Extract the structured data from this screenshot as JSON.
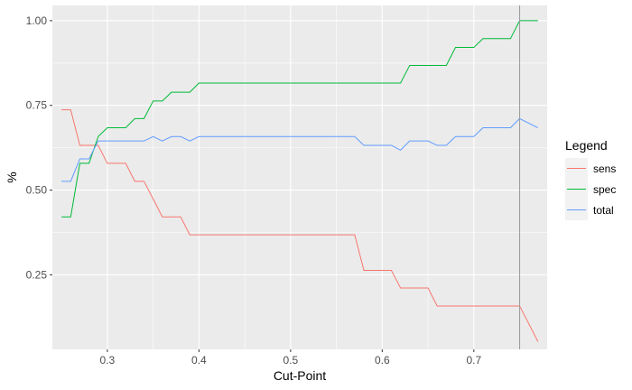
{
  "chart_data": {
    "type": "line",
    "title": "",
    "xlabel": "Cut-Point",
    "ylabel": "%",
    "xlim": [
      0.24,
      0.78
    ],
    "ylim": [
      0.03,
      1.045
    ],
    "x_ticks": [
      0.3,
      0.4,
      0.5,
      0.6,
      0.7
    ],
    "x_tick_labels": [
      "0.3",
      "0.4",
      "0.5",
      "0.6",
      "0.7"
    ],
    "y_ticks": [
      0.25,
      0.5,
      0.75,
      1.0
    ],
    "y_tick_labels": [
      "0.25",
      "0.50",
      "0.75",
      "1.00"
    ],
    "grid": true,
    "background": "#EBEBEB",
    "vline": {
      "x": 0.75,
      "color": "#999999"
    },
    "legend": {
      "title": "Legend",
      "position": "right"
    },
    "series": [
      {
        "name": "sens",
        "color": "#F8766D",
        "points": [
          [
            0.25,
            0.737
          ],
          [
            0.26,
            0.737
          ],
          [
            0.27,
            0.632
          ],
          [
            0.28,
            0.632
          ],
          [
            0.29,
            0.632
          ],
          [
            0.3,
            0.579
          ],
          [
            0.31,
            0.579
          ],
          [
            0.32,
            0.579
          ],
          [
            0.33,
            0.526
          ],
          [
            0.34,
            0.526
          ],
          [
            0.35,
            0.474
          ],
          [
            0.36,
            0.421
          ],
          [
            0.37,
            0.421
          ],
          [
            0.38,
            0.421
          ],
          [
            0.39,
            0.368
          ],
          [
            0.4,
            0.368
          ],
          [
            0.57,
            0.368
          ],
          [
            0.58,
            0.263
          ],
          [
            0.59,
            0.263
          ],
          [
            0.6,
            0.263
          ],
          [
            0.61,
            0.263
          ],
          [
            0.62,
            0.211
          ],
          [
            0.63,
            0.211
          ],
          [
            0.64,
            0.211
          ],
          [
            0.65,
            0.211
          ],
          [
            0.66,
            0.158
          ],
          [
            0.75,
            0.158
          ],
          [
            0.77,
            0.053
          ]
        ]
      },
      {
        "name": "spec",
        "color": "#00BA38",
        "points": [
          [
            0.25,
            0.421
          ],
          [
            0.26,
            0.421
          ],
          [
            0.27,
            0.579
          ],
          [
            0.28,
            0.579
          ],
          [
            0.29,
            0.658
          ],
          [
            0.3,
            0.684
          ],
          [
            0.31,
            0.684
          ],
          [
            0.32,
            0.684
          ],
          [
            0.33,
            0.711
          ],
          [
            0.34,
            0.711
          ],
          [
            0.35,
            0.763
          ],
          [
            0.36,
            0.763
          ],
          [
            0.37,
            0.789
          ],
          [
            0.38,
            0.789
          ],
          [
            0.39,
            0.789
          ],
          [
            0.4,
            0.816
          ],
          [
            0.62,
            0.816
          ],
          [
            0.63,
            0.868
          ],
          [
            0.64,
            0.868
          ],
          [
            0.65,
            0.868
          ],
          [
            0.66,
            0.868
          ],
          [
            0.67,
            0.868
          ],
          [
            0.68,
            0.921
          ],
          [
            0.69,
            0.921
          ],
          [
            0.7,
            0.921
          ],
          [
            0.71,
            0.947
          ],
          [
            0.72,
            0.947
          ],
          [
            0.73,
            0.947
          ],
          [
            0.74,
            0.947
          ],
          [
            0.75,
            1.0
          ],
          [
            0.77,
            1.0
          ]
        ]
      },
      {
        "name": "total",
        "color": "#619CFF",
        "points": [
          [
            0.25,
            0.526
          ],
          [
            0.26,
            0.526
          ],
          [
            0.27,
            0.592
          ],
          [
            0.28,
            0.592
          ],
          [
            0.29,
            0.645
          ],
          [
            0.3,
            0.645
          ],
          [
            0.34,
            0.645
          ],
          [
            0.35,
            0.658
          ],
          [
            0.36,
            0.645
          ],
          [
            0.37,
            0.658
          ],
          [
            0.38,
            0.658
          ],
          [
            0.39,
            0.645
          ],
          [
            0.4,
            0.658
          ],
          [
            0.57,
            0.658
          ],
          [
            0.58,
            0.632
          ],
          [
            0.61,
            0.632
          ],
          [
            0.62,
            0.618
          ],
          [
            0.63,
            0.645
          ],
          [
            0.65,
            0.645
          ],
          [
            0.66,
            0.632
          ],
          [
            0.67,
            0.632
          ],
          [
            0.68,
            0.658
          ],
          [
            0.7,
            0.658
          ],
          [
            0.71,
            0.684
          ],
          [
            0.74,
            0.684
          ],
          [
            0.75,
            0.711
          ],
          [
            0.77,
            0.684
          ]
        ]
      }
    ]
  }
}
